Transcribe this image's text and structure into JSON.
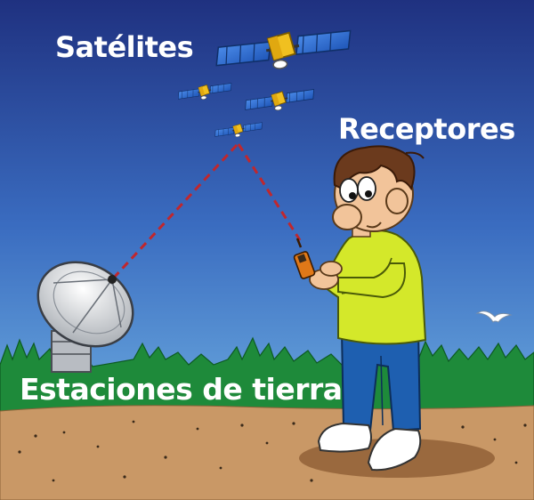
{
  "labels": {
    "satellites": "Satélites",
    "receivers": "Receptores",
    "ground_stations": "Estaciones de tierra"
  },
  "colors": {
    "sky_top": "#1f3180",
    "sky_bottom": "#73b8e6",
    "grass": "#1e8a3a",
    "ground": "#c99866",
    "signal_line": "#c0272d",
    "shirt": "#d4e82a",
    "pants": "#1e5fb0",
    "hair": "#6b3a1d",
    "skin": "#f2c49a",
    "solar_panel": "#2f6fd0",
    "satellite_body": "#f0c020"
  },
  "icons": {
    "satellites": "satellite-icon",
    "dish": "satellite-dish-icon",
    "receiver": "handheld-gps-icon",
    "bird": "seagull-icon"
  }
}
